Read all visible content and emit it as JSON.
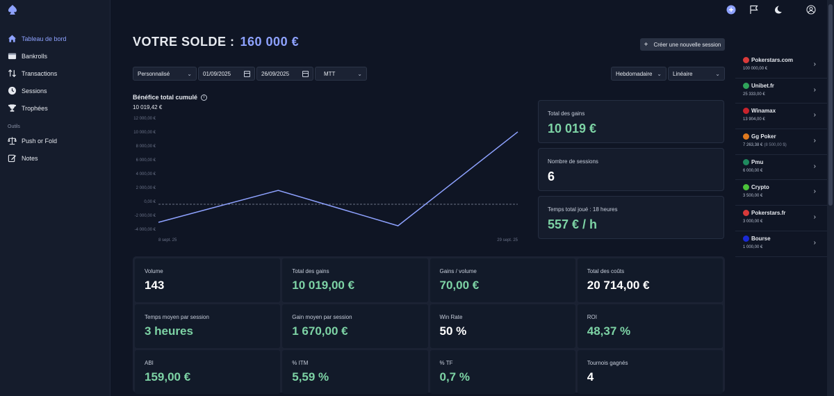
{
  "sidebar": {
    "items": [
      {
        "label": "Tableau de bord",
        "icon": "home-icon",
        "active": true
      },
      {
        "label": "Bankrolls",
        "icon": "wallet-icon",
        "active": false
      },
      {
        "label": "Transactions",
        "icon": "transfer-arrows-icon",
        "active": false
      },
      {
        "label": "Sessions",
        "icon": "clock-icon",
        "active": false
      },
      {
        "label": "Trophées",
        "icon": "trophy-icon",
        "active": false
      }
    ],
    "tools_label": "Outils",
    "tools": [
      {
        "label": "Push or Fold",
        "icon": "scale-icon"
      },
      {
        "label": "Notes",
        "icon": "edit-icon"
      }
    ]
  },
  "header": {
    "balance_label": "VOTRE SOLDE :",
    "balance_value": "160 000 €",
    "new_session_label": "Créer une nouvelle session",
    "accent": "#8ea2ff"
  },
  "filters": {
    "period": "Personnalisé",
    "start_date": "01/09/2025",
    "end_date": "26/09/2025",
    "game_type": "MTT",
    "granularity": "Hebdomadaire",
    "scale": "Linéaire"
  },
  "chart_data": {
    "type": "line",
    "title": "Bénéfice total cumulé",
    "current_value": "10 019,42 €",
    "x": [
      0,
      1,
      2,
      3
    ],
    "x_tick_labels": [
      "8 sept. 25",
      "29 sept. 25"
    ],
    "series": [
      {
        "values": [
          -3000,
          1600,
          -3500,
          10019.42
        ]
      }
    ],
    "ylim": [
      -4000,
      12000
    ],
    "y_ticks": [
      "12 000,00 €",
      "10 000,00 €",
      "8 000,00 €",
      "6 000,00 €",
      "4 000,00 €",
      "2 000,00 €",
      "0,00 €",
      "-2 000,00 €",
      "-4 000,00 €"
    ],
    "reference_line": -400,
    "line_color": "#8ea2ff"
  },
  "side_stats": [
    {
      "label": "Total des gains",
      "value": "10 019 €",
      "green": true
    },
    {
      "label": "Nombre de sessions",
      "value": "6",
      "green": false
    },
    {
      "label": "Temps total joué : 18 heures",
      "value": "557 € / h",
      "green": true
    }
  ],
  "stats": [
    {
      "label": "Volume",
      "value": "143",
      "green": false
    },
    {
      "label": "Total des gains",
      "value": "10 019,00 €",
      "green": true
    },
    {
      "label": "Gains / volume",
      "value": "70,00 €",
      "green": true
    },
    {
      "label": "Total des coûts",
      "value": "20 714,00 €",
      "green": false
    },
    {
      "label": "Temps moyen par session",
      "value": "3 heures",
      "green": true
    },
    {
      "label": "Gain moyen par session",
      "value": "1 670,00 €",
      "green": true
    },
    {
      "label": "Win Rate",
      "value": "50 %",
      "green": false
    },
    {
      "label": "ROI",
      "value": "48,37 %",
      "green": true
    },
    {
      "label": "ABI",
      "value": "159,00 €",
      "green": true
    },
    {
      "label": "% ITM",
      "value": "5,59 %",
      "green": true
    },
    {
      "label": "% TF",
      "value": "0,7 %",
      "green": true
    },
    {
      "label": "Tournois gagnés",
      "value": "4",
      "green": false
    }
  ],
  "rooms": [
    {
      "name": "Pokerstars.com",
      "balance": "100 000,00 €",
      "sub": "",
      "color": "#d93a3a"
    },
    {
      "name": "Unibet.fr",
      "balance": "25 333,00 €",
      "sub": "",
      "color": "#2fa35a"
    },
    {
      "name": "Winamax",
      "balance": "13 904,00 €",
      "sub": "",
      "color": "#c8232c"
    },
    {
      "name": "Gg Poker",
      "balance": "7 263,38 €",
      "sub": "(8 500,00 $)",
      "color": "#e07a1f"
    },
    {
      "name": "Pmu",
      "balance": "6 000,00 €",
      "sub": "",
      "color": "#1f8a5e"
    },
    {
      "name": "Crypto",
      "balance": "3 500,00 €",
      "sub": "",
      "color": "#4cc23a"
    },
    {
      "name": "Pokerstars.fr",
      "balance": "3 000,00 €",
      "sub": "",
      "color": "#d93a3a"
    },
    {
      "name": "Bourse",
      "balance": "1 000,00 €",
      "sub": "",
      "color": "#1a2ad6"
    }
  ]
}
